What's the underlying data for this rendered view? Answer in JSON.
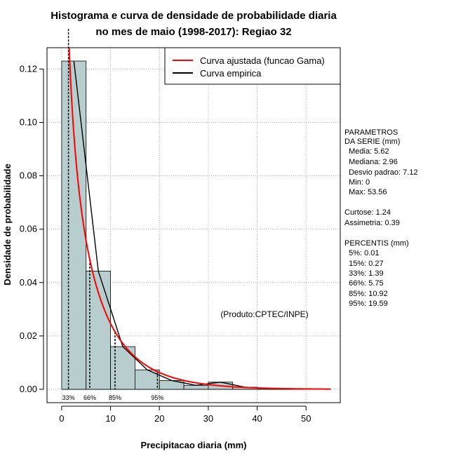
{
  "chart_data": {
    "type": "histogram",
    "title_line1": "Histograma e curva de densidade de probabilidade diaria",
    "title_line2": "no mes de maio (1998-2017): Regiao 32",
    "xlabel": "Precipitacao diaria (mm)",
    "ylabel": "Densidade de probabilidade",
    "xlim": [
      -3,
      57
    ],
    "ylim": [
      -0.005,
      0.128
    ],
    "x_ticks": [
      0,
      10,
      20,
      30,
      40,
      50
    ],
    "y_ticks": [
      0.0,
      0.02,
      0.04,
      0.06,
      0.08,
      0.1,
      0.12
    ],
    "x_tick_labels": [
      "0",
      "10",
      "20",
      "30",
      "40",
      "50"
    ],
    "y_tick_labels": [
      "0.00",
      "0.02",
      "0.04",
      "0.06",
      "0.08",
      "0.10",
      "0.12"
    ],
    "grid": true,
    "bins": [
      {
        "start": 0,
        "end": 5,
        "density": 0.123
      },
      {
        "start": 5,
        "end": 10,
        "density": 0.0443
      },
      {
        "start": 10,
        "end": 15,
        "density": 0.016
      },
      {
        "start": 15,
        "end": 20,
        "density": 0.0073
      },
      {
        "start": 20,
        "end": 25,
        "density": 0.0033
      },
      {
        "start": 25,
        "end": 30,
        "density": 0.0015
      },
      {
        "start": 30,
        "end": 35,
        "density": 0.0027
      },
      {
        "start": 35,
        "end": 40,
        "density": 0.0008
      },
      {
        "start": 40,
        "end": 45,
        "density": 0.0003
      },
      {
        "start": 45,
        "end": 50,
        "density": 0.0002
      },
      {
        "start": 50,
        "end": 55,
        "density": 0.0002
      }
    ],
    "gamma_fit": {
      "shape": 0.62,
      "scale": 9.06,
      "x_min": 0.3,
      "x_max": 55
    },
    "empirical_curve_color": "#000000",
    "fit_curve_color": "#ff0000",
    "bar_color": "#b8cece",
    "percentile_markers": [
      {
        "label": "33%",
        "value": 1.39
      },
      {
        "label": "66%",
        "value": 5.75
      },
      {
        "label": "85%",
        "value": 10.92
      },
      {
        "label": "95%",
        "value": 19.59
      }
    ],
    "legend": {
      "position": "top-right",
      "entries": [
        {
          "label": "Curva ajustada (funcao Gama)",
          "color": "#ff0000"
        },
        {
          "label": "Curva empirica",
          "color": "#000000"
        }
      ]
    },
    "annotation": "(Produto:CPTEC/INPE)"
  },
  "side_panel": {
    "params_header1": "PARAMETROS",
    "params_header2": "DA SERIE (mm)",
    "media": "  Media: 5.62",
    "mediana": "  Mediana: 2.96",
    "desvio": "  Desvio padrao: 7.12",
    "min": "  Min: 0",
    "max": "  Max: 53.56",
    "curtose": "Curtose: 1.24",
    "assimetria": "Assimetria: 0.39",
    "percentis_header": "PERCENTIS (mm)",
    "p5": "  5%: 0.01",
    "p15": "  15%: 0.27",
    "p33": "  33%: 1.39",
    "p66": "  66%: 5.75",
    "p85": "  85%: 10.92",
    "p95": "  95%: 19.59"
  }
}
